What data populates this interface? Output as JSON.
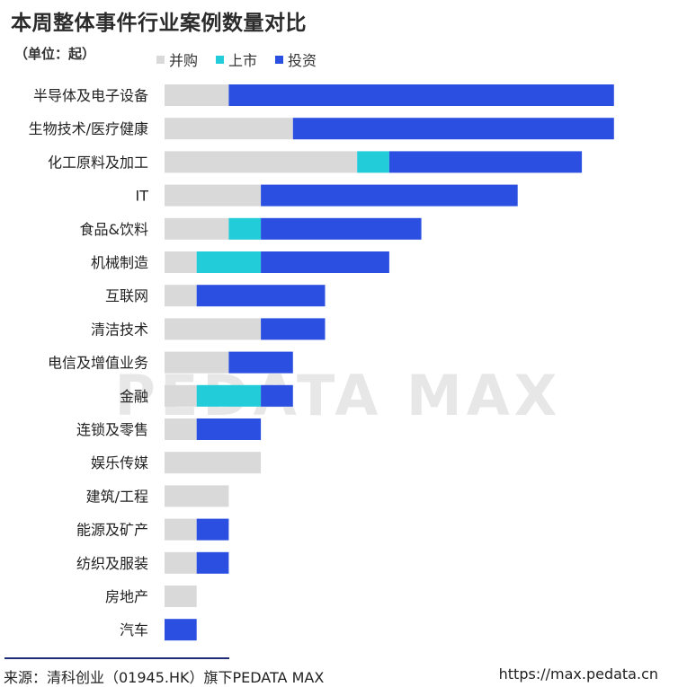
{
  "title": "本周整体事件行业案例数量对比",
  "unit_label": "（单位：起）",
  "legend": [
    {
      "label": "并购",
      "color": "#d9d9d9"
    },
    {
      "label": "上市",
      "color": "#22ccd9"
    },
    {
      "label": "投资",
      "color": "#2b4fe0"
    }
  ],
  "watermark": {
    "text": "PEDATA MAX"
  },
  "chart_data": {
    "type": "bar",
    "orientation": "horizontal",
    "stacked": true,
    "title": "本周整体事件行业案例数量对比",
    "xlabel": "",
    "ylabel": "",
    "unit": "起",
    "categories": [
      "半导体及电子设备",
      "生物技术/医疗健康",
      "化工原料及加工",
      "IT",
      "食品&饮料",
      "机械制造",
      "互联网",
      "清洁技术",
      "电信及增值业务",
      "金融",
      "连锁及零售",
      "娱乐传媒",
      "建筑/工程",
      "能源及矿产",
      "纺织及服装",
      "房地产",
      "汽车"
    ],
    "series": [
      {
        "name": "并购",
        "color": "#d9d9d9",
        "values": [
          2,
          4,
          6,
          3,
          2,
          1,
          1,
          3,
          2,
          1,
          1,
          3,
          2,
          1,
          1,
          1,
          0
        ]
      },
      {
        "name": "上市",
        "color": "#22ccd9",
        "values": [
          0,
          0,
          1,
          0,
          1,
          2,
          0,
          0,
          0,
          2,
          0,
          0,
          0,
          0,
          0,
          0,
          0
        ]
      },
      {
        "name": "投资",
        "color": "#2b4fe0",
        "values": [
          12,
          10,
          6,
          8,
          5,
          4,
          4,
          2,
          2,
          1,
          2,
          0,
          0,
          1,
          1,
          0,
          1
        ]
      }
    ],
    "xlim": [
      0,
      14
    ],
    "legend_position": "top"
  },
  "footer": {
    "source": "来源：清科创业（01945.HK）旗下PEDATA MAX",
    "url": "https://max.pedata.cn"
  }
}
